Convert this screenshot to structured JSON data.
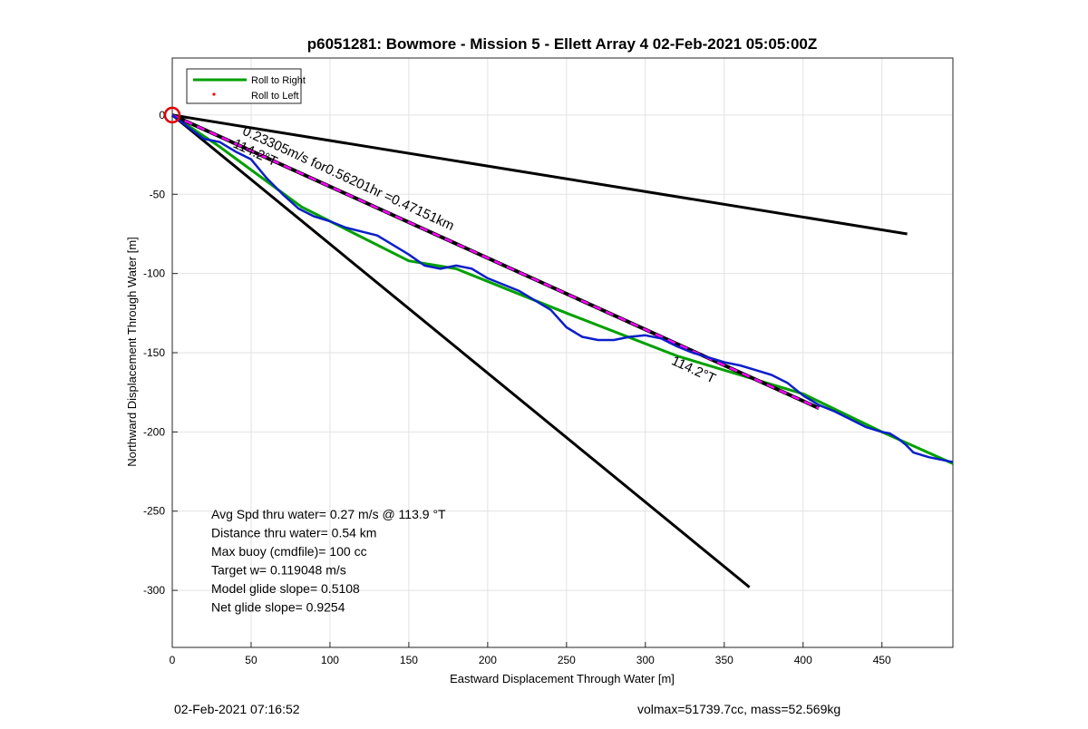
{
  "chart_data": {
    "type": "line",
    "title": "p6051281: Bowmore - Mission 5 - Ellett Array 4 02-Feb-2021 05:05:00Z",
    "xlabel": "Eastward Displacement Through Water [m]",
    "ylabel": "Northward Displacement Through Water [m]",
    "xlim": [
      0,
      495
    ],
    "ylim": [
      -336,
      36
    ],
    "x_ticks": [
      0,
      50,
      100,
      150,
      200,
      250,
      300,
      350,
      400,
      450
    ],
    "y_ticks": [
      0,
      -50,
      -100,
      -150,
      -200,
      -250,
      -300
    ],
    "grid": true,
    "legend": {
      "position": "top-left",
      "entries": [
        {
          "label": "Roll to Right",
          "color": "#00a000",
          "style": "line"
        },
        {
          "label": "Roll to Left",
          "color": "#ff0000",
          "style": "dot"
        }
      ]
    },
    "series": [
      {
        "key": "cone_upper",
        "color": "#000000",
        "x": [
          0,
          466
        ],
        "y": [
          0,
          -75
        ]
      },
      {
        "key": "cone_lower",
        "color": "#000000",
        "x": [
          0,
          366
        ],
        "y": [
          0,
          -298
        ]
      },
      {
        "key": "current_vector",
        "color": "#000000",
        "dash_color": "#ff00ff",
        "x": [
          0,
          410
        ],
        "y": [
          0,
          -185
        ]
      },
      {
        "key": "green_track",
        "color": "#00a000",
        "x": [
          0,
          30,
          82,
          150,
          180,
          250,
          320,
          400,
          450,
          495
        ],
        "y": [
          0,
          -20,
          -58,
          -92,
          -97,
          -125,
          -152,
          -176,
          -200,
          -220
        ]
      },
      {
        "key": "blue_track",
        "color": "#0a1fc8",
        "x": [
          0,
          20,
          30,
          40,
          50,
          60,
          70,
          80,
          90,
          100,
          110,
          130,
          150,
          160,
          170,
          175,
          180,
          190,
          200,
          220,
          240,
          250,
          260,
          270,
          280,
          290,
          300,
          310,
          320,
          330,
          340,
          350,
          360,
          370,
          380,
          390,
          400,
          410,
          420,
          430,
          440,
          450,
          455,
          460,
          465,
          470,
          480,
          495
        ],
        "y": [
          0,
          -15,
          -17,
          -23,
          -28,
          -40,
          -50,
          -59,
          -64,
          -67,
          -71,
          -76,
          -88,
          -95,
          -97,
          -96,
          -95,
          -97,
          -103,
          -111,
          -123,
          -134,
          -140,
          -142,
          -142,
          -140,
          -139,
          -141,
          -146,
          -150,
          -153,
          -156,
          -158,
          -161,
          -164,
          -169,
          -177,
          -183,
          -187,
          -192,
          -197,
          -200,
          -201,
          -204,
          -208,
          -213,
          -216,
          -219
        ]
      }
    ],
    "start_marker": {
      "x": 0,
      "y": 0,
      "color": "#e00000"
    },
    "annotations": [
      {
        "text": "0.23305m/s for0.56201hr =0.47151km",
        "x": 44,
        "y": -12,
        "angle": 24.7
      },
      {
        "text": "114.2°T",
        "x": 38,
        "y": -20,
        "angle": 24.7
      },
      {
        "text": "114.2°T",
        "x": 316,
        "y": -157,
        "angle": 24.7
      }
    ],
    "stats": [
      "Avg Spd thru water=  0.27 m/s @ 113.9 °T",
      "Distance thru water=  0.54 km",
      "Max buoy (cmdfile)= 100 cc",
      "Target w= 0.119048 m/s",
      "Model glide slope= 0.5108",
      "Net glide slope= 0.9254"
    ]
  },
  "footer": {
    "timestamp": "02-Feb-2021 07:16:52",
    "vol_mass": "volmax=51739.7cc, mass=52.569kg"
  }
}
